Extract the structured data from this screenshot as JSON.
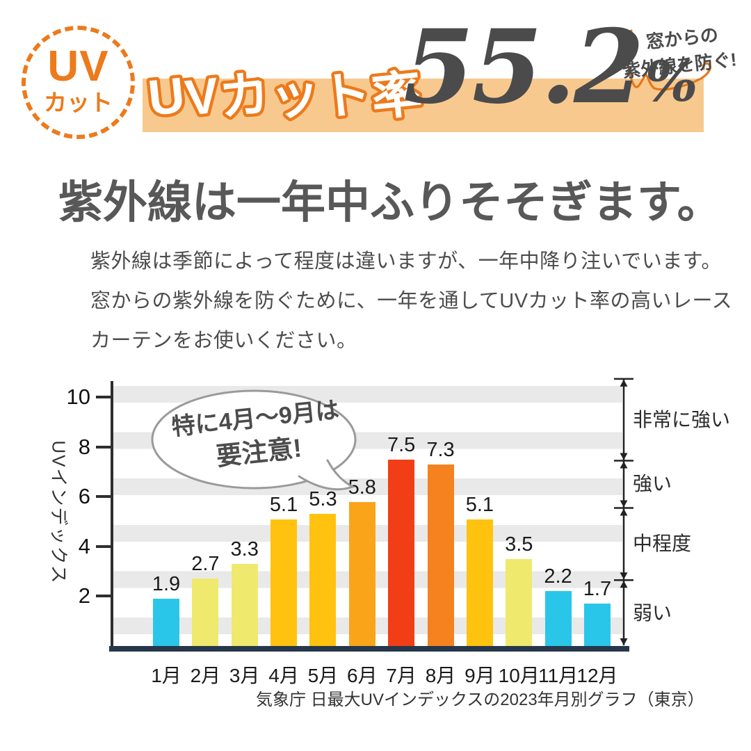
{
  "badge": {
    "line1": "UV",
    "line2": "カット"
  },
  "header": {
    "banner_label": "UVカット率",
    "value": "55.2",
    "unit": "%",
    "note_line1": "窓からの",
    "note_line2": "紫外線を防ぐ!"
  },
  "headline": "紫外線は一年中ふりそそぎます。",
  "body_lines": [
    "紫外線は季節によって程度は違いますが、一年中降り注いでいます。",
    "窓からの紫外線を防ぐために、一年を通してUVカット率の高いレース",
    "カーテンをお使いください。"
  ],
  "chart_data": {
    "type": "bar",
    "categories": [
      "1月",
      "2月",
      "3月",
      "4月",
      "5月",
      "6月",
      "7月",
      "8月",
      "9月",
      "10月",
      "11月",
      "12月"
    ],
    "values": [
      1.9,
      2.7,
      3.3,
      5.1,
      5.3,
      5.8,
      7.5,
      7.3,
      5.1,
      3.5,
      2.2,
      1.7
    ],
    "bar_colors": [
      "#29C6E9",
      "#EFE96E",
      "#EFE96E",
      "#FFC20E",
      "#FFC20E",
      "#FAA41A",
      "#F23E16",
      "#F5821F",
      "#FFC20E",
      "#EFE96E",
      "#29C6E9",
      "#29C6E9"
    ],
    "ylabel": "UVインデックス",
    "yticks": [
      2,
      4,
      6,
      8,
      10
    ],
    "ylim": [
      0,
      10.74
    ],
    "grid": "striped-horizontal-bands",
    "annotation": {
      "line1": "特に4月〜9月は",
      "line2": "要注意!"
    },
    "zones": [
      {
        "label": "非常に強い",
        "from": 7.45,
        "to": 10.74
      },
      {
        "label": "強い",
        "from": 5.55,
        "to": 7.45
      },
      {
        "label": "中程度",
        "from": 2.65,
        "to": 5.55
      },
      {
        "label": "弱い",
        "from": 0,
        "to": 2.65
      }
    ],
    "caption": "気象庁 日最大UVインデックスの2023年月別グラフ（東京）",
    "colors": {
      "accent_orange": "#ED7A1B",
      "banner_bg": "#F8C98E",
      "number_gray": "#4B4B4B",
      "axis_navy": "#26374B",
      "grid_gray": "#e9e9e9",
      "bubble_stroke": "#9a9a9a"
    }
  }
}
